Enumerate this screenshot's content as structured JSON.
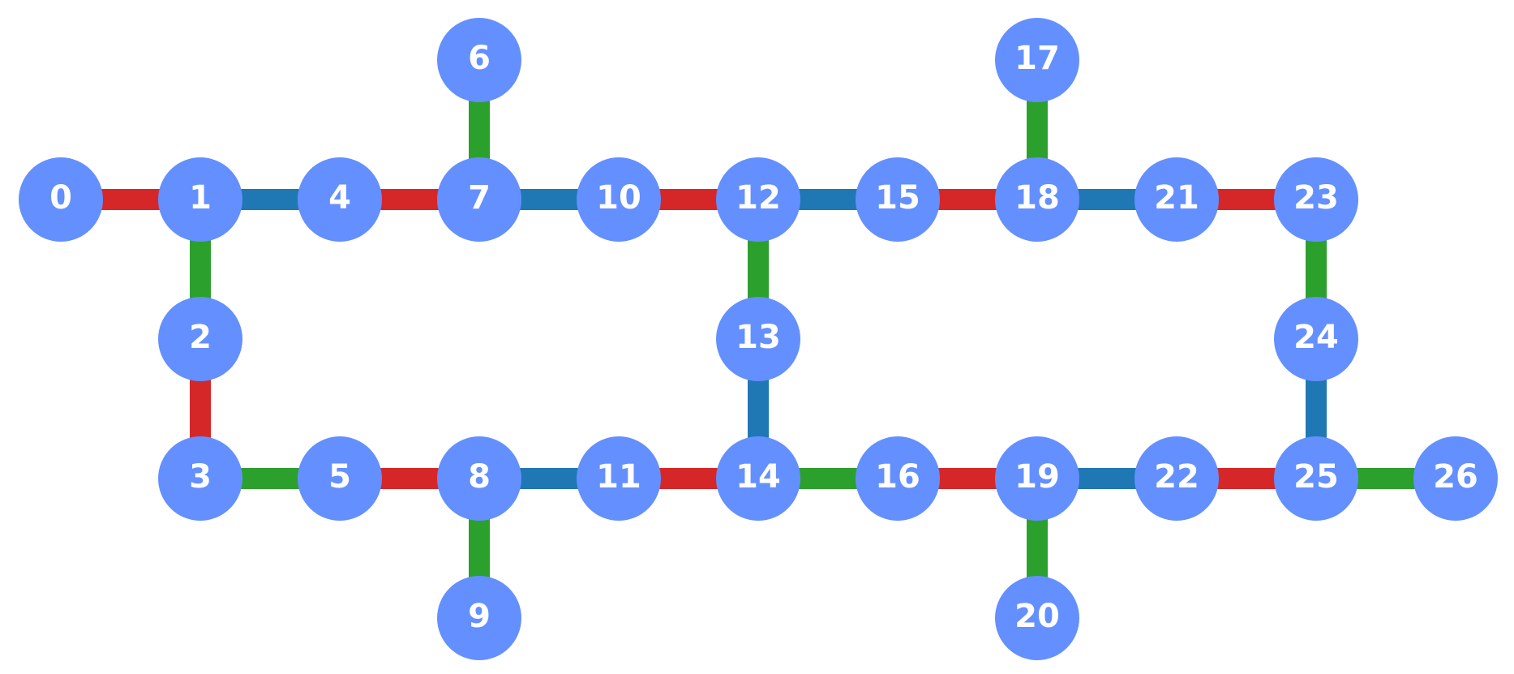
{
  "colors": {
    "node_fill": "#648fff",
    "label": "#ffffff",
    "red": "#d62728",
    "blue": "#1f77b4",
    "green": "#2ca02c"
  },
  "nodes": [
    {
      "id": 0,
      "label": "0"
    },
    {
      "id": 1,
      "label": "1"
    },
    {
      "id": 2,
      "label": "2"
    },
    {
      "id": 3,
      "label": "3"
    },
    {
      "id": 4,
      "label": "4"
    },
    {
      "id": 5,
      "label": "5"
    },
    {
      "id": 6,
      "label": "6"
    },
    {
      "id": 7,
      "label": "7"
    },
    {
      "id": 8,
      "label": "8"
    },
    {
      "id": 9,
      "label": "9"
    },
    {
      "id": 10,
      "label": "10"
    },
    {
      "id": 11,
      "label": "11"
    },
    {
      "id": 12,
      "label": "12"
    },
    {
      "id": 13,
      "label": "13"
    },
    {
      "id": 14,
      "label": "14"
    },
    {
      "id": 15,
      "label": "15"
    },
    {
      "id": 16,
      "label": "16"
    },
    {
      "id": 17,
      "label": "17"
    },
    {
      "id": 18,
      "label": "18"
    },
    {
      "id": 19,
      "label": "19"
    },
    {
      "id": 20,
      "label": "20"
    },
    {
      "id": 21,
      "label": "21"
    },
    {
      "id": 22,
      "label": "22"
    },
    {
      "id": 23,
      "label": "23"
    },
    {
      "id": 24,
      "label": "24"
    },
    {
      "id": 25,
      "label": "25"
    },
    {
      "id": 26,
      "label": "26"
    }
  ],
  "edges": [
    {
      "from": 0,
      "to": 1,
      "color": "red"
    },
    {
      "from": 1,
      "to": 4,
      "color": "blue"
    },
    {
      "from": 4,
      "to": 7,
      "color": "red"
    },
    {
      "from": 7,
      "to": 10,
      "color": "blue"
    },
    {
      "from": 10,
      "to": 12,
      "color": "red"
    },
    {
      "from": 12,
      "to": 15,
      "color": "blue"
    },
    {
      "from": 15,
      "to": 18,
      "color": "red"
    },
    {
      "from": 18,
      "to": 21,
      "color": "blue"
    },
    {
      "from": 21,
      "to": 23,
      "color": "red"
    },
    {
      "from": 6,
      "to": 7,
      "color": "green"
    },
    {
      "from": 17,
      "to": 18,
      "color": "green"
    },
    {
      "from": 1,
      "to": 2,
      "color": "green"
    },
    {
      "from": 2,
      "to": 3,
      "color": "red"
    },
    {
      "from": 12,
      "to": 13,
      "color": "green"
    },
    {
      "from": 13,
      "to": 14,
      "color": "blue"
    },
    {
      "from": 23,
      "to": 24,
      "color": "green"
    },
    {
      "from": 24,
      "to": 25,
      "color": "blue"
    },
    {
      "from": 3,
      "to": 5,
      "color": "green"
    },
    {
      "from": 5,
      "to": 8,
      "color": "red"
    },
    {
      "from": 8,
      "to": 11,
      "color": "blue"
    },
    {
      "from": 11,
      "to": 14,
      "color": "red"
    },
    {
      "from": 14,
      "to": 16,
      "color": "green"
    },
    {
      "from": 16,
      "to": 19,
      "color": "red"
    },
    {
      "from": 19,
      "to": 22,
      "color": "blue"
    },
    {
      "from": 22,
      "to": 25,
      "color": "red"
    },
    {
      "from": 25,
      "to": 26,
      "color": "green"
    },
    {
      "from": 8,
      "to": 9,
      "color": "green"
    },
    {
      "from": 19,
      "to": 20,
      "color": "green"
    }
  ]
}
